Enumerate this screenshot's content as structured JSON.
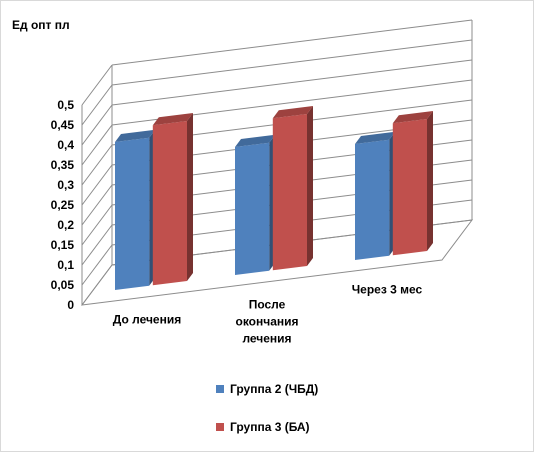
{
  "chart_data": {
    "type": "bar",
    "title": "",
    "xlabel": "",
    "ylabel": "Ед опт пл",
    "ylim": [
      0,
      0.5
    ],
    "yticks": [
      "0",
      "0,05",
      "0,1",
      "0,15",
      "0,2",
      "0,25",
      "0,3",
      "0,35",
      "0,4",
      "0,45",
      "0,5"
    ],
    "categories": [
      "До лечения",
      "После окончания лечения",
      "Через 3 мес"
    ],
    "series": [
      {
        "name": "Группа 2 (ЧБД)",
        "values": [
          0.37,
          0.32,
          0.29
        ],
        "color": "#4f81bd"
      },
      {
        "name": "Группа 3 (БА)",
        "values": [
          0.4,
          0.38,
          0.33
        ],
        "color": "#c0504d"
      }
    ],
    "grid": true,
    "legend_position": "bottom",
    "style": "3d-column"
  }
}
